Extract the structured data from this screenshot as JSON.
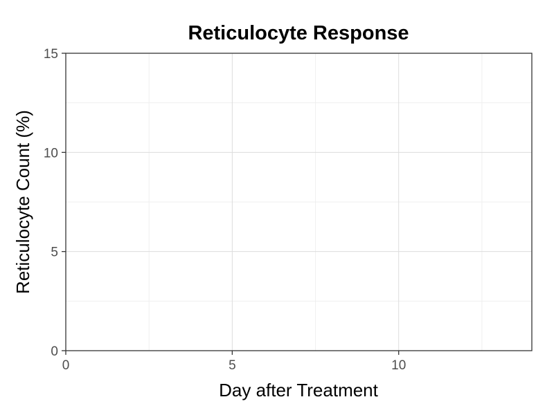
{
  "chart_data": {
    "type": "line",
    "title": "Reticulocyte Response",
    "xlabel": "Day after Treatment",
    "ylabel": "Reticulocyte Count (%)",
    "xlim": [
      0,
      14
    ],
    "ylim": [
      0,
      15
    ],
    "x_ticks": [
      0,
      5,
      10
    ],
    "y_ticks": [
      0,
      5,
      10,
      15
    ],
    "x_minor": [
      2.5,
      7.5,
      12.5
    ],
    "y_minor": [
      2.5,
      7.5,
      12.5
    ],
    "grid": true,
    "series": []
  }
}
